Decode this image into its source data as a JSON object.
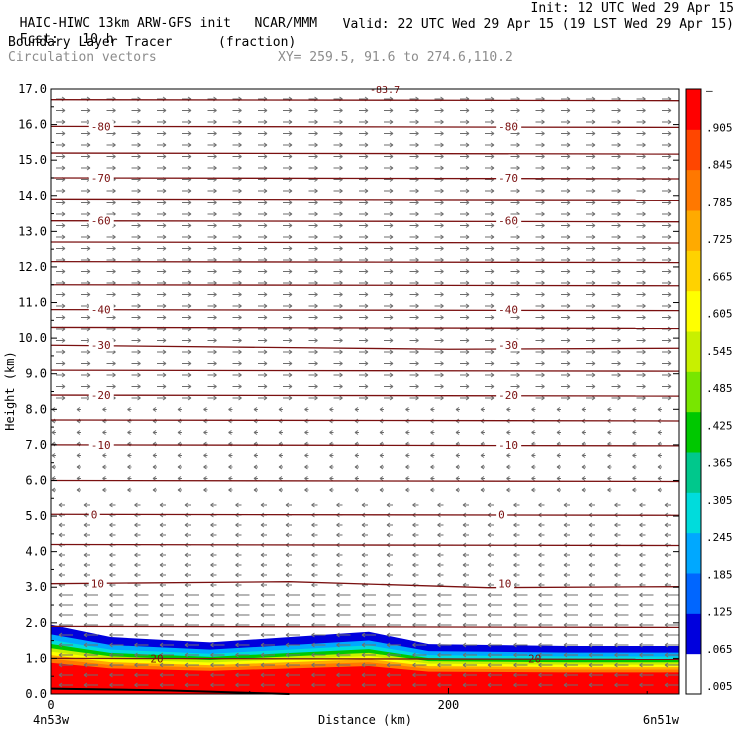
{
  "header": {
    "model": "HAIC-HIWC 13km ARW-GFS init",
    "org": "NCAR/MMM",
    "init": "Init: 12 UTC Wed 29 Apr 15",
    "fcst_label": "Fcst:",
    "fcst_value": "10 h",
    "valid": "Valid: 22 UTC Wed 29 Apr 15 (19 LST Wed 29 Apr 15)",
    "field_name": "Boundary Layer Tracer",
    "field_unit": "(fraction)",
    "overlay": "Circulation vectors",
    "xy": "XY= 259.5, 91.6 to 274.6,110.2"
  },
  "colors": {
    "contour": "#7a1010",
    "vector": "#6e6e6e",
    "colorbar": [
      "#ffffff",
      "#0000dd",
      "#0066ff",
      "#00a8ff",
      "#00dcdc",
      "#00c88c",
      "#00c800",
      "#78e600",
      "#c8f000",
      "#ffff00",
      "#ffd200",
      "#ffaa00",
      "#ff7800",
      "#ff4600",
      "#ff0000"
    ]
  },
  "chart_data": {
    "type": "heatmap",
    "title": "Boundary Layer Tracer",
    "xlabel": "Distance (km)",
    "ylabel": "Height (km)",
    "xlim": [
      0,
      316
    ],
    "ylim": [
      0,
      17
    ],
    "x_ticks": [
      {
        "value": 0,
        "label": "0"
      },
      {
        "value": 200,
        "label": "200"
      }
    ],
    "y_ticks": [
      "0.0",
      "1.0",
      "2.0",
      "3.0",
      "4.0",
      "5.0",
      "6.0",
      "7.0",
      "8.0",
      "9.0",
      "10.0",
      "11.0",
      "12.0",
      "13.0",
      "14.0",
      "15.0",
      "16.0",
      "17.0"
    ],
    "x_endpoints": {
      "left": "4n53w",
      "right": "6n51w"
    },
    "colorbar_labels": [
      ".005",
      ".065",
      ".125",
      ".185",
      ".245",
      ".305",
      ".365",
      ".425",
      ".485",
      ".545",
      ".605",
      ".665",
      ".725",
      ".785",
      ".845",
      ".905",
      "–"
    ],
    "boundary_layer_top_km": [
      {
        "x": 0,
        "y": 1.95
      },
      {
        "x": 30,
        "y": 1.6
      },
      {
        "x": 80,
        "y": 1.45
      },
      {
        "x": 160,
        "y": 1.75
      },
      {
        "x": 190,
        "y": 1.4
      },
      {
        "x": 260,
        "y": 1.35
      },
      {
        "x": 316,
        "y": 1.35
      }
    ],
    "temperature_contours": [
      {
        "label": "-80",
        "y_km": 15.95
      },
      {
        "label": "-70",
        "y_km": 14.5
      },
      {
        "label": "-60",
        "y_km": 13.3
      },
      {
        "label": "-40",
        "y_km": 10.8
      },
      {
        "label": "-30",
        "y_km": 9.8
      },
      {
        "label": "-20",
        "y_km": 8.4
      },
      {
        "label": "-10",
        "y_km": 7.0
      },
      {
        "label": "0",
        "y_km": 5.05
      },
      {
        "label": "10",
        "y_km": 3.1
      },
      {
        "label": "20",
        "y_km": 1.0
      }
    ],
    "other_contour_levels_km": [
      16.7,
      15.2,
      13.9,
      12.7,
      12.15,
      11.5,
      10.3,
      9.1,
      7.7,
      6.0,
      4.2,
      1.9
    ],
    "top_label": "-83.7",
    "legend": "none",
    "grid": false
  }
}
